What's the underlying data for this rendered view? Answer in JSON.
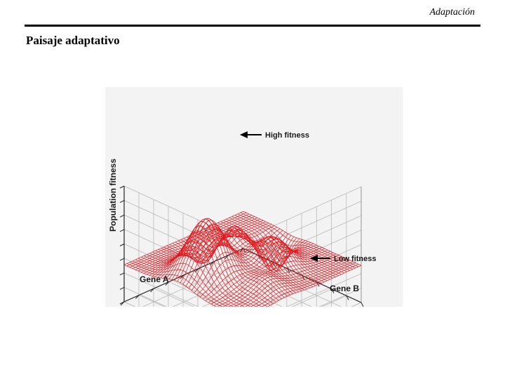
{
  "header": {
    "section_title": "Adaptación"
  },
  "slide": {
    "title": "Paisaje adaptativo"
  },
  "figure": {
    "axis_z_label": "Population fitness",
    "axis_x_label": "Gene A",
    "axis_y_label": "Gene B",
    "annotation_high": "High fitness",
    "annotation_low": "Low fitness",
    "surface_color": "#e0191e",
    "grid_color": "#b8b8b8"
  }
}
